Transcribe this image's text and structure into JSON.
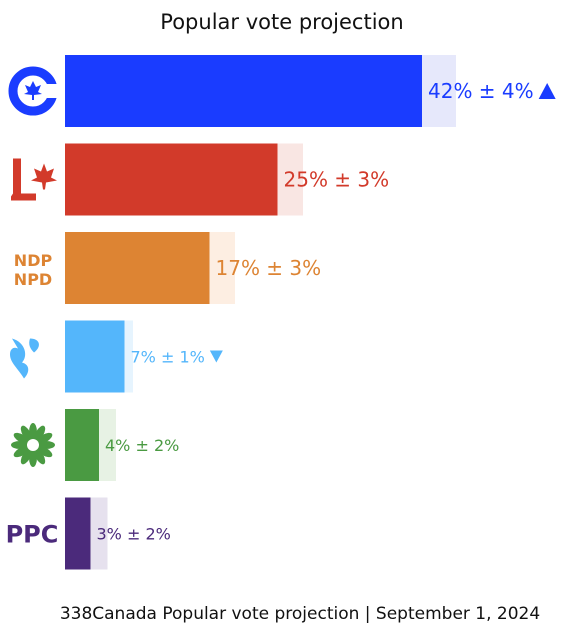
{
  "chart_data": {
    "type": "bar",
    "orientation": "horizontal",
    "title": "Popular vote projection",
    "footer": "338Canada Popular vote projection | September 1, 2024",
    "xlim": [
      0,
      54
    ],
    "grid": false,
    "legend": "none",
    "categories": [
      "Conservative",
      "Liberal",
      "NDP",
      "Bloc Québécois",
      "Green",
      "PPC"
    ],
    "values": [
      42,
      25,
      17,
      7,
      4,
      3
    ],
    "margins": [
      4,
      3,
      3,
      1,
      2,
      2
    ],
    "trends": [
      "up",
      "none",
      "none",
      "down",
      "none",
      "none"
    ],
    "labels": [
      "42% ± 4%",
      "25% ± 3%",
      "17% ± 3%",
      "7% ± 1%",
      "4% ± 2%",
      "3% ± 2%"
    ],
    "logo_text": {
      "NDP": [
        "NDP",
        "NPD"
      ],
      "PPC": "PPC"
    },
    "colors": [
      "#1a3cff",
      "#d23a2a",
      "#dd8433",
      "#54b6fb",
      "#4a9a42",
      "#4b2a7b"
    ],
    "band_colors": [
      "#e6e8fb",
      "#f9e6e3",
      "#fdeee2",
      "#e6f4fe",
      "#e7f2e4",
      "#e6e1ee"
    ]
  }
}
